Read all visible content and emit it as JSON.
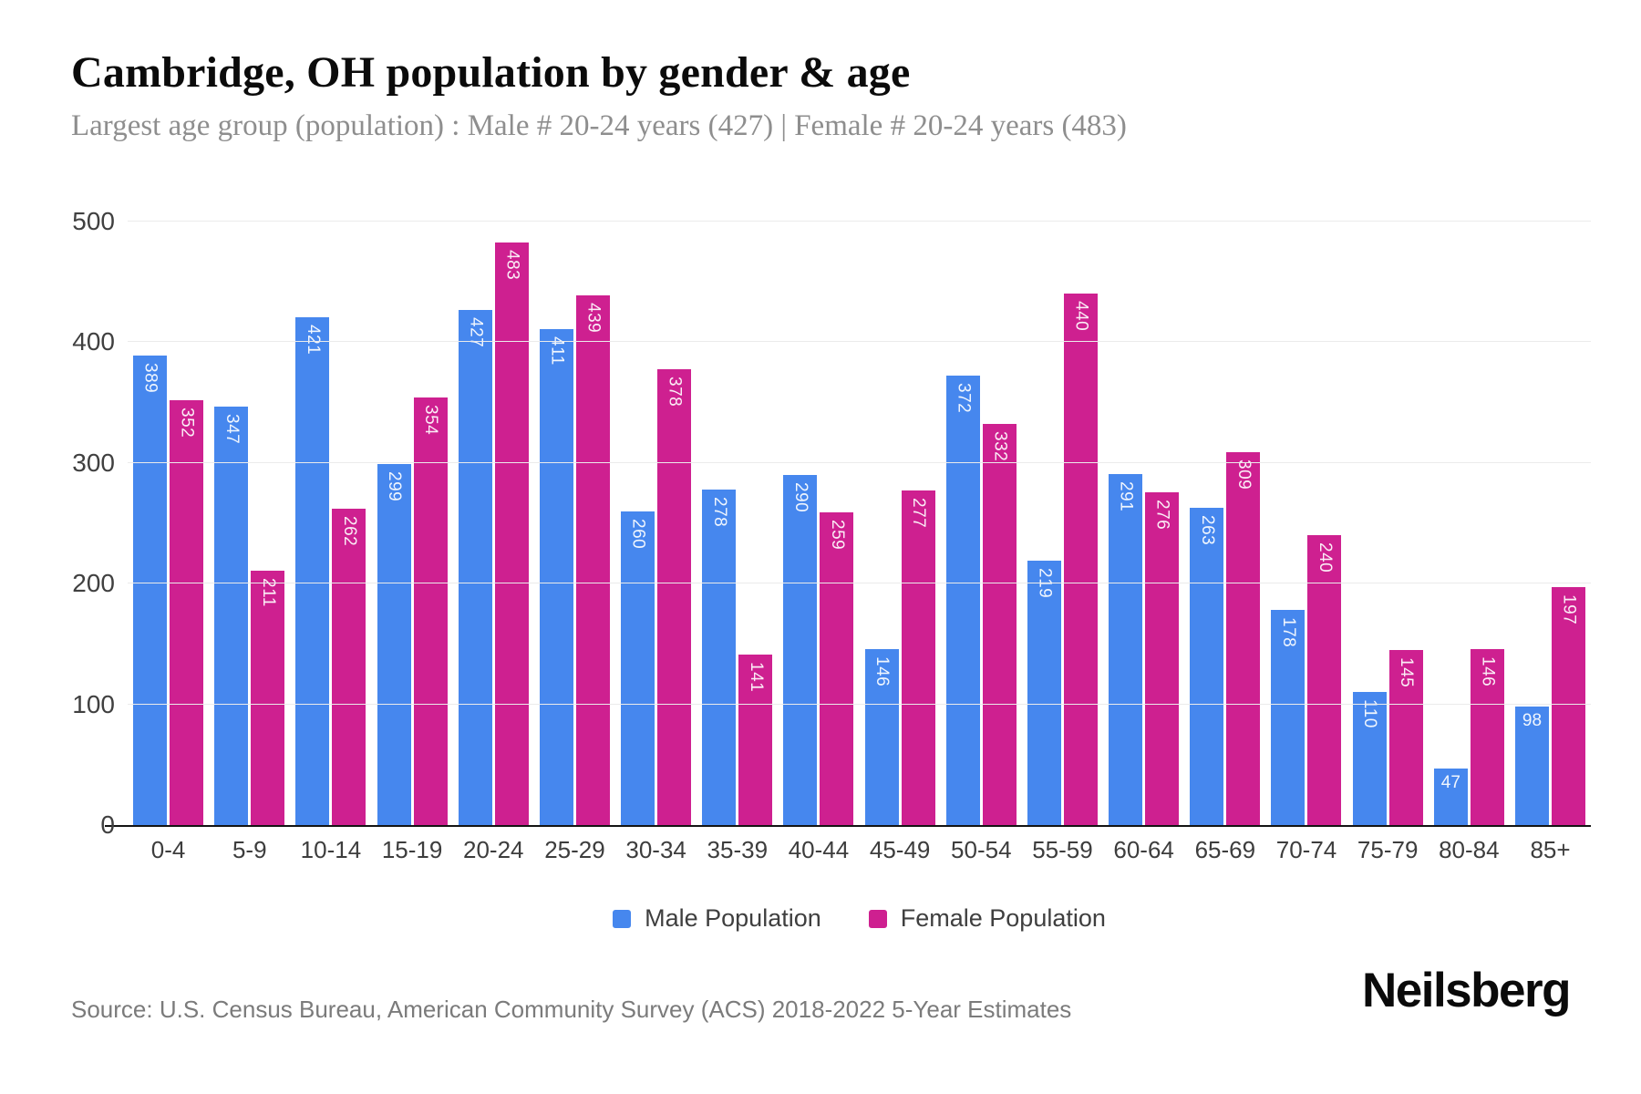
{
  "chart_data": {
    "type": "bar",
    "title": "Cambridge, OH population by gender & age",
    "subtitle": "Largest age group (population) : Male # 20-24 years (427) | Female # 20-24 years (483)",
    "categories": [
      "0-4",
      "5-9",
      "10-14",
      "15-19",
      "20-24",
      "25-29",
      "30-34",
      "35-39",
      "40-44",
      "45-49",
      "50-54",
      "55-59",
      "60-64",
      "65-69",
      "70-74",
      "75-79",
      "80-84",
      "85+"
    ],
    "series": [
      {
        "name": "Male Population",
        "color": "#4687ee",
        "key": "male",
        "values": [
          389,
          347,
          421,
          299,
          427,
          411,
          260,
          278,
          290,
          146,
          372,
          219,
          291,
          263,
          178,
          110,
          47,
          98
        ]
      },
      {
        "name": "Female Population",
        "color": "#ce2090",
        "key": "female",
        "values": [
          352,
          211,
          262,
          354,
          483,
          439,
          378,
          141,
          259,
          277,
          332,
          440,
          276,
          309,
          240,
          145,
          146,
          197
        ]
      }
    ],
    "xlabel": "",
    "ylabel": "",
    "ylim": [
      0,
      500
    ],
    "yticks": [
      0,
      100,
      200,
      300,
      400,
      500
    ],
    "grid": true,
    "legend_position": "bottom",
    "value_labels": true
  },
  "footer": {
    "source": "Source: U.S. Census Bureau, American Community Survey (ACS) 2018-2022 5-Year Estimates",
    "brand": "Neilsberg"
  }
}
